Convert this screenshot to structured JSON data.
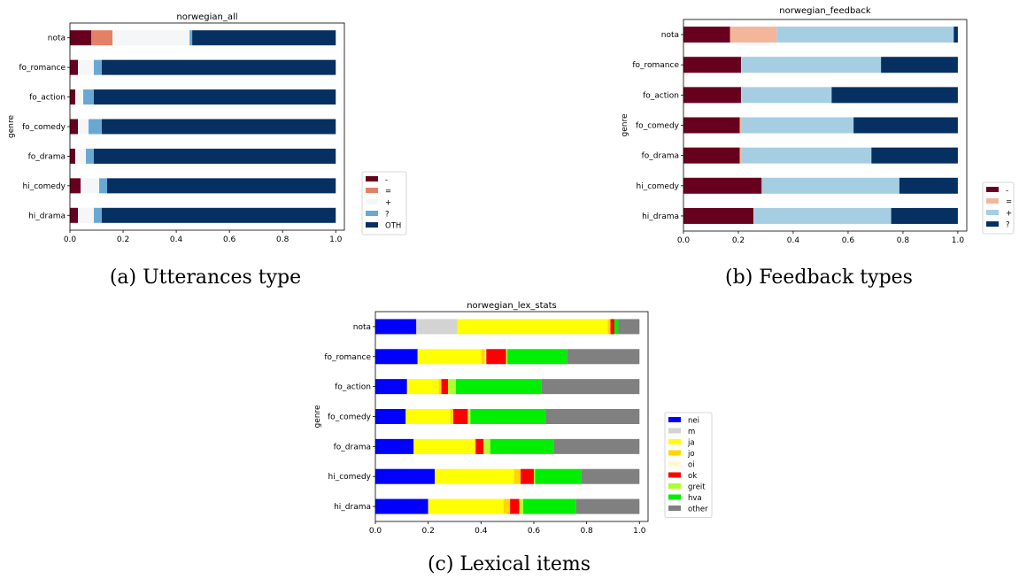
{
  "chart_data": [
    {
      "type": "bar",
      "orientation": "horizontal",
      "stacked": true,
      "title": "norwegian_all",
      "ylabel": "genre",
      "xlabel": "",
      "xlim": [
        0,
        1
      ],
      "xticks": [
        "0.0",
        "0.2",
        "0.4",
        "0.6",
        "0.8",
        "1.0"
      ],
      "categories": [
        "nota",
        "fo_romance",
        "fo_action",
        "fo_comedy",
        "fo_drama",
        "hi_comedy",
        "hi_drama"
      ],
      "series": [
        {
          "name": "-",
          "color": "#67001f",
          "values": [
            0.08,
            0.03,
            0.02,
            0.03,
            0.02,
            0.04,
            0.03
          ]
        },
        {
          "name": "=",
          "color": "#e48066",
          "values": [
            0.08,
            0.0,
            0.0,
            0.0,
            0.0,
            0.0,
            0.0
          ]
        },
        {
          "name": "+",
          "color": "#f4f6f7",
          "values": [
            0.29,
            0.06,
            0.03,
            0.04,
            0.04,
            0.07,
            0.06
          ]
        },
        {
          "name": "?",
          "color": "#6aa8d4",
          "values": [
            0.01,
            0.03,
            0.04,
            0.05,
            0.03,
            0.03,
            0.03
          ]
        },
        {
          "name": "OTH",
          "color": "#053061",
          "values": [
            0.54,
            0.88,
            0.91,
            0.88,
            0.91,
            0.86,
            0.88
          ]
        }
      ],
      "legend": "right"
    },
    {
      "type": "bar",
      "orientation": "horizontal",
      "stacked": true,
      "title": "norwegian_feedback",
      "ylabel": "genre",
      "xlabel": "",
      "xlim": [
        0,
        1
      ],
      "xticks": [
        "0.0",
        "0.2",
        "0.4",
        "0.6",
        "0.8",
        "1.0"
      ],
      "categories": [
        "nota",
        "fo_romance",
        "fo_action",
        "fo_comedy",
        "fo_drama",
        "hi_comedy",
        "hi_drama"
      ],
      "series": [
        {
          "name": "-",
          "color": "#67001f",
          "values": [
            0.17,
            0.21,
            0.21,
            0.205,
            0.205,
            0.285,
            0.255
          ]
        },
        {
          "name": "=",
          "color": "#f4b69b",
          "values": [
            0.17,
            0.002,
            0.002,
            0.005,
            0.005,
            0.002,
            0.002
          ]
        },
        {
          "name": "+",
          "color": "#a6cee3",
          "values": [
            0.645,
            0.508,
            0.328,
            0.41,
            0.475,
            0.5,
            0.5
          ]
        },
        {
          "name": "?",
          "color": "#053061",
          "values": [
            0.015,
            0.28,
            0.46,
            0.38,
            0.315,
            0.213,
            0.243
          ]
        }
      ],
      "legend": "right"
    },
    {
      "type": "bar",
      "orientation": "horizontal",
      "stacked": true,
      "title": "norwegian_lex_stats",
      "ylabel": "genre",
      "xlabel": "",
      "xlim": [
        0,
        1
      ],
      "xticks": [
        "0.0",
        "0.2",
        "0.4",
        "0.6",
        "0.8",
        "1.0"
      ],
      "categories": [
        "nota",
        "fo_romance",
        "fo_action",
        "fo_comedy",
        "fo_drama",
        "hi_comedy",
        "hi_drama"
      ],
      "series": [
        {
          "name": "nei",
          "color": "#0000ff",
          "values": [
            0.155,
            0.16,
            0.12,
            0.115,
            0.145,
            0.225,
            0.2
          ]
        },
        {
          "name": "m",
          "color": "#d3d3d3",
          "values": [
            0.155,
            0.0,
            0.0,
            0.0,
            0.0,
            0.0,
            0.0
          ]
        },
        {
          "name": "ja",
          "color": "#ffff00",
          "values": [
            0.57,
            0.24,
            0.12,
            0.17,
            0.23,
            0.3,
            0.285
          ]
        },
        {
          "name": "jo",
          "color": "#ffd700",
          "values": [
            0.01,
            0.015,
            0.01,
            0.01,
            0.005,
            0.025,
            0.025
          ]
        },
        {
          "name": "oi",
          "color": "#fffacd",
          "values": [
            0.0,
            0.005,
            0.0,
            0.0,
            0.0,
            0.0,
            0.0
          ]
        },
        {
          "name": "ok",
          "color": "#ff0000",
          "values": [
            0.015,
            0.075,
            0.025,
            0.055,
            0.03,
            0.05,
            0.035
          ]
        },
        {
          "name": "greit",
          "color": "#adff2f",
          "values": [
            0.0,
            0.005,
            0.03,
            0.01,
            0.025,
            0.005,
            0.015
          ]
        },
        {
          "name": "hva",
          "color": "#00ee00",
          "values": [
            0.015,
            0.225,
            0.325,
            0.285,
            0.24,
            0.175,
            0.2
          ]
        },
        {
          "name": "other",
          "color": "#808080",
          "values": [
            0.08,
            0.275,
            0.37,
            0.355,
            0.325,
            0.22,
            0.24
          ]
        }
      ],
      "legend": "right"
    }
  ],
  "captions": [
    "(a) Utterances type",
    "(b) Feedback types",
    "(c) Lexical items"
  ]
}
